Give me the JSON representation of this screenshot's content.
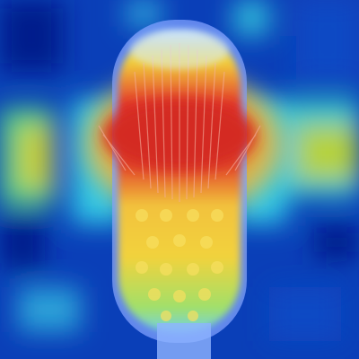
{
  "image": {
    "subject": "toothbrush-head-attention-heatmap",
    "colormap": "jet",
    "palette": {
      "background": "#0a3fb8",
      "deep_blue": "#061e8c",
      "cyan": "#31c8e6",
      "green": "#5fd27a",
      "yellow": "#f2d23c",
      "orange": "#f28a2a",
      "red": "#e2342a",
      "dark_red": "#b8161c",
      "handle": "#7fa0ff"
    }
  }
}
